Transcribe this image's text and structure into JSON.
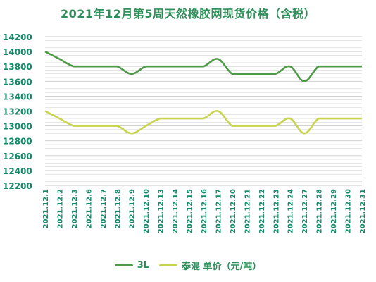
{
  "colors": {
    "title": "#2f8f5a",
    "axis_text": "#148a6a",
    "grid": "#c9c9c9",
    "series_3l": "#4f9a48",
    "series_thai": "#c8d44e"
  },
  "chart_data": {
    "type": "line",
    "title": "2021年12月第5周天然橡胶网现货价格（含税）",
    "xlabel": "",
    "ylabel": "",
    "ylim": [
      12200,
      14200
    ],
    "yticks": [
      12200,
      12400,
      12600,
      12800,
      13000,
      13200,
      13400,
      13600,
      13800,
      14000,
      14200
    ],
    "grid": true,
    "legend_position": "bottom",
    "categories": [
      "2021.12.1",
      "2021.12.2",
      "2021.12.3",
      "2021.12.6",
      "2021.12.7",
      "2021.12.8",
      "2021.12.9",
      "2021.12.10",
      "2021.12.13",
      "2021.12.14",
      "2021.12.15",
      "2021.12.16",
      "2021.12.17",
      "2021.12.20",
      "2021.12.21",
      "2021.12.22",
      "2021.12.23",
      "2021.12.24",
      "2021.12.27",
      "2021.12.28",
      "2021.12.29",
      "2021.12.30",
      "2021.12.31"
    ],
    "series": [
      {
        "name": "3L",
        "values": [
          14000,
          13900,
          13800,
          13800,
          13800,
          13800,
          13700,
          13800,
          13800,
          13800,
          13800,
          13800,
          13900,
          13700,
          13700,
          13700,
          13700,
          13800,
          13600,
          13800,
          13800,
          13800,
          13800
        ]
      },
      {
        "name": "泰混  单价（元/吨）",
        "values": [
          13200,
          13100,
          13000,
          13000,
          13000,
          13000,
          12900,
          13000,
          13100,
          13100,
          13100,
          13100,
          13200,
          13000,
          13000,
          13000,
          13000,
          13100,
          12900,
          13100,
          13100,
          13100,
          13100
        ]
      }
    ]
  }
}
